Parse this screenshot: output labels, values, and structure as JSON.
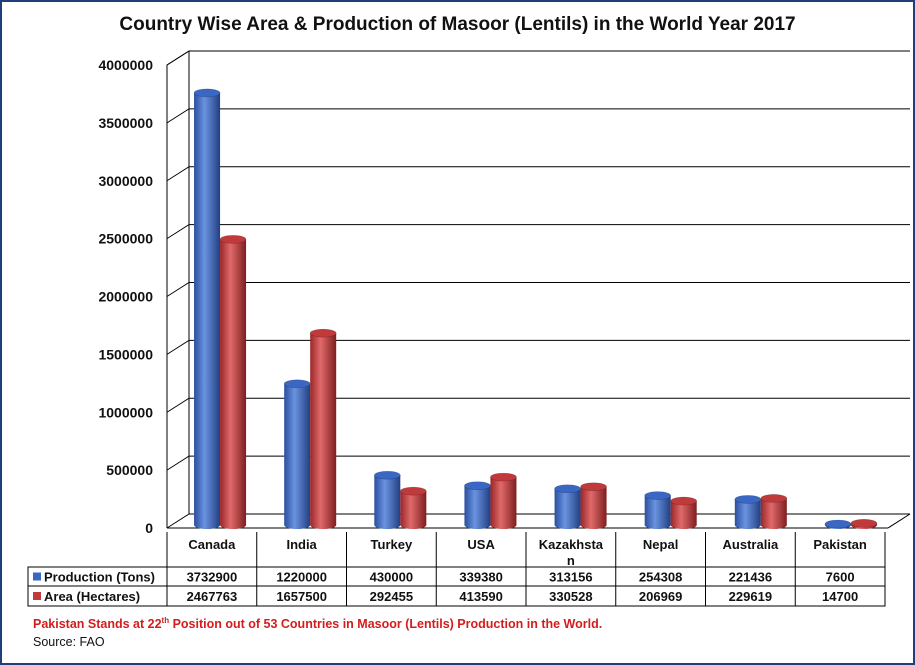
{
  "title": "Country Wise Area & Production of Masoor (Lentils) in the World Year 2017",
  "chart_data": {
    "type": "bar",
    "categories": [
      "Canada",
      "India",
      "Turkey",
      "USA",
      "Kazakhstan",
      "Nepal",
      "Australia",
      "Pakistan"
    ],
    "category_display": [
      "Canada",
      "India",
      "Turkey",
      "USA",
      "Kazakhsta\nn",
      "Nepal",
      "Australia",
      "Pakistan"
    ],
    "series": [
      {
        "name": "Production (Tons)",
        "color": "#3a66c4",
        "values": [
          3732900,
          1220000,
          430000,
          339380,
          313156,
          254308,
          221436,
          7600
        ]
      },
      {
        "name": "Area (Hectares)",
        "color": "#c0393b",
        "values": [
          2467763,
          1657500,
          292455,
          413590,
          330528,
          206969,
          229619,
          14700
        ]
      }
    ],
    "y_ticks": [
      "0",
      "500000",
      "1000000",
      "1500000",
      "2000000",
      "2500000",
      "3000000",
      "3500000",
      "4000000"
    ],
    "ylim": [
      0,
      4000000
    ],
    "grid": true,
    "legend": "data-table",
    "style": "3d-cylinder"
  },
  "footnote": {
    "before": "Pakistan Stands at 22",
    "sup": "th",
    "after": " Position out of 53 Countries in Masoor (Lentils) Production in the World."
  },
  "source": "Source: FAO"
}
